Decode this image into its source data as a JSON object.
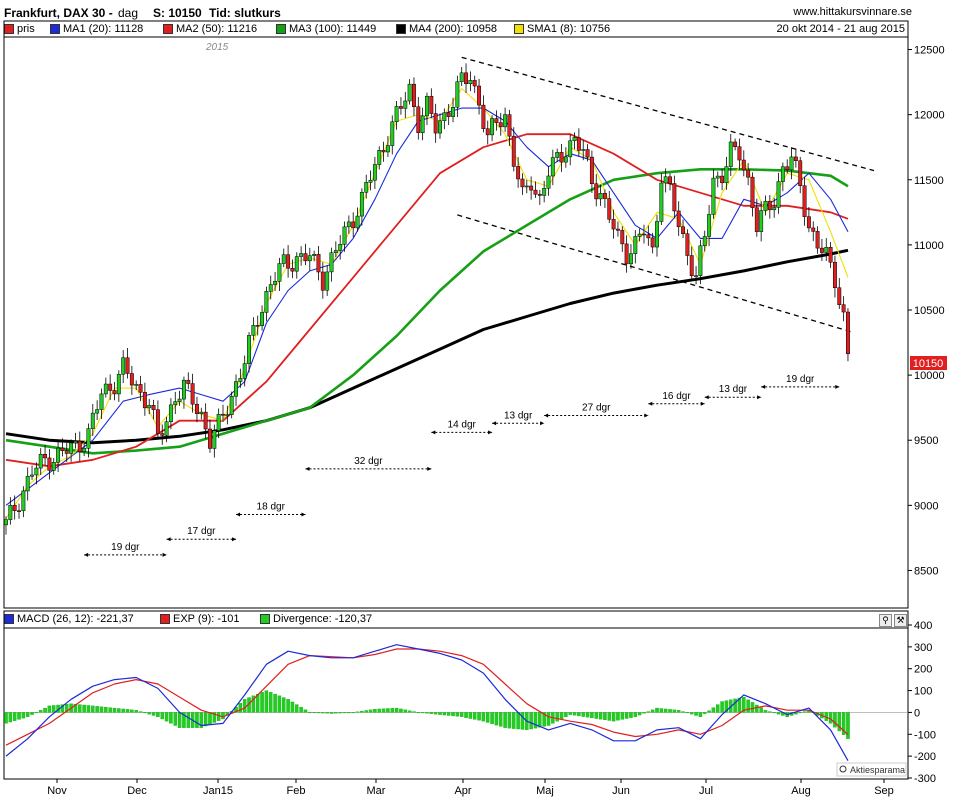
{
  "header": {
    "title": "Frankfurt, DAX 30 -",
    "interval": "dag",
    "s_label": "S: 10150",
    "tid_label": "Tid: slutkurs",
    "site": "www.hittakursvinnare.se",
    "period": "20 okt 2014 - 21 aug 2015"
  },
  "legend": [
    {
      "label": "pris",
      "color": "#e02020"
    },
    {
      "label": "MA1 (20): 11128",
      "color": "#1c2ad8"
    },
    {
      "label": "MA2 (50): 11216",
      "color": "#e02020"
    },
    {
      "label": "MA3 (100): 11449",
      "color": "#16a016"
    },
    {
      "label": "MA4 (200): 10958",
      "color": "#000000"
    },
    {
      "label": "SMA1 (8): 10756",
      "color": "#f0e000"
    }
  ],
  "macd_legend": [
    {
      "label": "MACD (26, 12): -221,37",
      "color": "#1c2ad8"
    },
    {
      "label": "EXP (9): -101",
      "color": "#e02020"
    },
    {
      "label": "Divergence: -120,37",
      "color": "#22cc22"
    }
  ],
  "year_label": "2015",
  "last_price_label": "10150",
  "credit": "Aktiesparama",
  "chart_data": {
    "type": "candlestick",
    "xlabels": [
      "Nov",
      "Dec",
      "Jan15",
      "Feb",
      "Mar",
      "Apr",
      "Maj",
      "Jun",
      "Jul",
      "Aug",
      "Sep"
    ],
    "price_ticks": [
      12500,
      12000,
      11500,
      11000,
      10500,
      10000,
      9500,
      9000,
      8500
    ],
    "price_ylim": [
      8350,
      12550
    ],
    "macd_ticks": [
      400,
      300,
      200,
      100,
      0,
      -100,
      -200,
      -300
    ],
    "macd_ylim": [
      -300,
      400
    ],
    "price_path": [
      [
        0,
        8850
      ],
      [
        3,
        9050
      ],
      [
        6,
        9250
      ],
      [
        9,
        9350
      ],
      [
        13,
        9400
      ],
      [
        16,
        9450
      ],
      [
        19,
        9550
      ],
      [
        22,
        9850
      ],
      [
        25,
        9950
      ],
      [
        27,
        10050
      ],
      [
        30,
        9900
      ],
      [
        33,
        9800
      ],
      [
        35,
        9500
      ],
      [
        37,
        9650
      ],
      [
        39,
        9850
      ],
      [
        41,
        9900
      ],
      [
        43,
        9800
      ],
      [
        45,
        9700
      ],
      [
        47,
        9500
      ],
      [
        49,
        9600
      ],
      [
        52,
        9850
      ],
      [
        55,
        10100
      ],
      [
        58,
        10450
      ],
      [
        61,
        10700
      ],
      [
        64,
        10850
      ],
      [
        67,
        10900
      ],
      [
        70,
        10900
      ],
      [
        73,
        10750
      ],
      [
        76,
        10950
      ],
      [
        79,
        11150
      ],
      [
        82,
        11350
      ],
      [
        85,
        11600
      ],
      [
        88,
        11850
      ],
      [
        91,
        12050
      ],
      [
        93,
        12200
      ],
      [
        95,
        11950
      ],
      [
        97,
        12050
      ],
      [
        99,
        11900
      ],
      [
        101,
        12000
      ],
      [
        103,
        12100
      ],
      [
        105,
        12250
      ],
      [
        107,
        12300
      ],
      [
        109,
        12100
      ],
      [
        111,
        11800
      ],
      [
        113,
        11950
      ],
      [
        115,
        12000
      ],
      [
        117,
        11650
      ],
      [
        119,
        11350
      ],
      [
        121,
        11500
      ],
      [
        123,
        11350
      ],
      [
        125,
        11550
      ],
      [
        127,
        11650
      ],
      [
        129,
        11750
      ],
      [
        131,
        11800
      ],
      [
        133,
        11700
      ],
      [
        135,
        11500
      ],
      [
        137,
        11400
      ],
      [
        139,
        11200
      ],
      [
        141,
        11050
      ],
      [
        143,
        10950
      ],
      [
        145,
        11000
      ],
      [
        147,
        11100
      ],
      [
        149,
        10950
      ],
      [
        151,
        11550
      ],
      [
        153,
        11400
      ],
      [
        155,
        11150
      ],
      [
        157,
        10950
      ],
      [
        159,
        10750
      ],
      [
        161,
        11050
      ],
      [
        163,
        11500
      ],
      [
        165,
        11550
      ],
      [
        167,
        11700
      ],
      [
        169,
        11700
      ],
      [
        171,
        11500
      ],
      [
        173,
        11150
      ],
      [
        175,
        11250
      ],
      [
        177,
        11350
      ],
      [
        179,
        11600
      ],
      [
        181,
        11650
      ],
      [
        183,
        11450
      ],
      [
        185,
        11150
      ],
      [
        187,
        11000
      ],
      [
        189,
        10900
      ],
      [
        191,
        10750
      ],
      [
        193,
        10450
      ],
      [
        194,
        10150
      ]
    ],
    "ma20_path": [
      [
        0,
        9000
      ],
      [
        10,
        9250
      ],
      [
        20,
        9500
      ],
      [
        27,
        9800
      ],
      [
        33,
        9850
      ],
      [
        40,
        9900
      ],
      [
        45,
        9850
      ],
      [
        50,
        9800
      ],
      [
        55,
        9950
      ],
      [
        60,
        10400
      ],
      [
        65,
        10650
      ],
      [
        70,
        10800
      ],
      [
        75,
        10850
      ],
      [
        80,
        11050
      ],
      [
        85,
        11350
      ],
      [
        90,
        11700
      ],
      [
        95,
        11950
      ],
      [
        100,
        12000
      ],
      [
        105,
        12050
      ],
      [
        110,
        12050
      ],
      [
        115,
        11950
      ],
      [
        120,
        11750
      ],
      [
        125,
        11600
      ],
      [
        130,
        11700
      ],
      [
        135,
        11650
      ],
      [
        140,
        11400
      ],
      [
        145,
        11150
      ],
      [
        150,
        11050
      ],
      [
        155,
        11250
      ],
      [
        160,
        11050
      ],
      [
        165,
        11050
      ],
      [
        170,
        11350
      ],
      [
        175,
        11300
      ],
      [
        180,
        11400
      ],
      [
        185,
        11550
      ],
      [
        190,
        11350
      ],
      [
        194,
        11100
      ]
    ],
    "ma50_path": [
      [
        0,
        9350
      ],
      [
        10,
        9300
      ],
      [
        20,
        9350
      ],
      [
        30,
        9450
      ],
      [
        40,
        9650
      ],
      [
        50,
        9650
      ],
      [
        60,
        9950
      ],
      [
        70,
        10350
      ],
      [
        80,
        10750
      ],
      [
        90,
        11150
      ],
      [
        100,
        11550
      ],
      [
        110,
        11750
      ],
      [
        120,
        11850
      ],
      [
        130,
        11850
      ],
      [
        140,
        11700
      ],
      [
        150,
        11500
      ],
      [
        160,
        11400
      ],
      [
        170,
        11300
      ],
      [
        180,
        11300
      ],
      [
        190,
        11250
      ],
      [
        194,
        11200
      ]
    ],
    "ma100_path": [
      [
        0,
        9500
      ],
      [
        10,
        9450
      ],
      [
        20,
        9400
      ],
      [
        30,
        9420
      ],
      [
        40,
        9450
      ],
      [
        50,
        9550
      ],
      [
        60,
        9650
      ],
      [
        70,
        9750
      ],
      [
        80,
        10000
      ],
      [
        90,
        10300
      ],
      [
        100,
        10650
      ],
      [
        110,
        10950
      ],
      [
        120,
        11150
      ],
      [
        130,
        11350
      ],
      [
        140,
        11500
      ],
      [
        150,
        11550
      ],
      [
        160,
        11580
      ],
      [
        170,
        11580
      ],
      [
        180,
        11570
      ],
      [
        190,
        11530
      ],
      [
        194,
        11450
      ]
    ],
    "ma200_path": [
      [
        0,
        9550
      ],
      [
        10,
        9500
      ],
      [
        20,
        9480
      ],
      [
        30,
        9500
      ],
      [
        40,
        9530
      ],
      [
        50,
        9580
      ],
      [
        60,
        9650
      ],
      [
        70,
        9750
      ],
      [
        80,
        9900
      ],
      [
        90,
        10050
      ],
      [
        100,
        10200
      ],
      [
        110,
        10350
      ],
      [
        120,
        10450
      ],
      [
        130,
        10550
      ],
      [
        140,
        10630
      ],
      [
        150,
        10690
      ],
      [
        160,
        10740
      ],
      [
        170,
        10800
      ],
      [
        180,
        10870
      ],
      [
        190,
        10930
      ],
      [
        194,
        10958
      ]
    ],
    "sma8_path": [
      [
        0,
        8900
      ],
      [
        5,
        9150
      ],
      [
        10,
        9300
      ],
      [
        15,
        9380
      ],
      [
        20,
        9550
      ],
      [
        25,
        9900
      ],
      [
        30,
        9900
      ],
      [
        35,
        9600
      ],
      [
        40,
        9800
      ],
      [
        45,
        9700
      ],
      [
        50,
        9650
      ],
      [
        55,
        10050
      ],
      [
        60,
        10550
      ],
      [
        65,
        10850
      ],
      [
        70,
        10900
      ],
      [
        75,
        10850
      ],
      [
        80,
        11150
      ],
      [
        85,
        11550
      ],
      [
        90,
        11950
      ],
      [
        95,
        12000
      ],
      [
        100,
        11950
      ],
      [
        105,
        12200
      ],
      [
        110,
        12050
      ],
      [
        115,
        11850
      ],
      [
        120,
        11500
      ],
      [
        125,
        11450
      ],
      [
        130,
        11750
      ],
      [
        135,
        11650
      ],
      [
        140,
        11250
      ],
      [
        145,
        11000
      ],
      [
        150,
        11250
      ],
      [
        155,
        11200
      ],
      [
        160,
        10850
      ],
      [
        165,
        11400
      ],
      [
        170,
        11650
      ],
      [
        175,
        11250
      ],
      [
        180,
        11550
      ],
      [
        185,
        11500
      ],
      [
        190,
        11100
      ],
      [
        194,
        10750
      ]
    ],
    "macd_path": [
      [
        0,
        -200
      ],
      [
        5,
        -120
      ],
      [
        10,
        -20
      ],
      [
        15,
        60
      ],
      [
        20,
        120
      ],
      [
        25,
        150
      ],
      [
        30,
        160
      ],
      [
        35,
        110
      ],
      [
        40,
        0
      ],
      [
        45,
        -60
      ],
      [
        50,
        -50
      ],
      [
        55,
        80
      ],
      [
        60,
        220
      ],
      [
        65,
        280
      ],
      [
        70,
        260
      ],
      [
        75,
        250
      ],
      [
        80,
        250
      ],
      [
        85,
        280
      ],
      [
        90,
        310
      ],
      [
        95,
        290
      ],
      [
        100,
        270
      ],
      [
        105,
        240
      ],
      [
        110,
        180
      ],
      [
        115,
        60
      ],
      [
        120,
        -40
      ],
      [
        125,
        -80
      ],
      [
        130,
        -50
      ],
      [
        135,
        -80
      ],
      [
        140,
        -130
      ],
      [
        145,
        -130
      ],
      [
        150,
        -80
      ],
      [
        155,
        -70
      ],
      [
        160,
        -120
      ],
      [
        165,
        -10
      ],
      [
        170,
        80
      ],
      [
        175,
        40
      ],
      [
        180,
        -10
      ],
      [
        185,
        20
      ],
      [
        190,
        -80
      ],
      [
        194,
        -221
      ]
    ],
    "exp_path": [
      [
        0,
        -150
      ],
      [
        5,
        -100
      ],
      [
        10,
        -50
      ],
      [
        15,
        20
      ],
      [
        20,
        90
      ],
      [
        25,
        130
      ],
      [
        30,
        150
      ],
      [
        35,
        130
      ],
      [
        40,
        70
      ],
      [
        45,
        10
      ],
      [
        50,
        -20
      ],
      [
        55,
        20
      ],
      [
        60,
        120
      ],
      [
        65,
        220
      ],
      [
        70,
        260
      ],
      [
        75,
        255
      ],
      [
        80,
        250
      ],
      [
        85,
        265
      ],
      [
        90,
        290
      ],
      [
        95,
        290
      ],
      [
        100,
        280
      ],
      [
        105,
        260
      ],
      [
        110,
        220
      ],
      [
        115,
        130
      ],
      [
        120,
        40
      ],
      [
        125,
        -20
      ],
      [
        130,
        -40
      ],
      [
        135,
        -55
      ],
      [
        140,
        -90
      ],
      [
        145,
        -110
      ],
      [
        150,
        -100
      ],
      [
        155,
        -80
      ],
      [
        160,
        -100
      ],
      [
        165,
        -60
      ],
      [
        170,
        10
      ],
      [
        175,
        30
      ],
      [
        180,
        10
      ],
      [
        185,
        10
      ],
      [
        190,
        -30
      ],
      [
        194,
        -101
      ]
    ],
    "channel_lines": [
      [
        [
          105,
          12440
        ],
        [
          200,
          11570
        ]
      ],
      [
        [
          104,
          11230
        ],
        [
          195,
          10330
        ]
      ]
    ],
    "cycles": [
      {
        "label": "19 dgr",
        "from": 18,
        "to": 37,
        "value": 8620
      },
      {
        "label": "17 dgr",
        "from": 37,
        "to": 53,
        "value": 8740
      },
      {
        "label": "18 dgr",
        "from": 53,
        "to": 69,
        "value": 8930
      },
      {
        "label": "32 dgr",
        "from": 69,
        "to": 98,
        "value": 9280
      },
      {
        "label": "14 dgr",
        "from": 98,
        "to": 112,
        "value": 9560
      },
      {
        "label": "13 dgr",
        "from": 112,
        "to": 124,
        "value": 9630
      },
      {
        "label": "27 dgr",
        "from": 124,
        "to": 148,
        "value": 9690
      },
      {
        "label": "16 dgr",
        "from": 148,
        "to": 161,
        "value": 9780
      },
      {
        "label": "13 dgr",
        "from": 161,
        "to": 174,
        "value": 9830
      },
      {
        "label": "19 dgr",
        "from": 174,
        "to": 192,
        "value": 9910
      }
    ],
    "colors": {
      "up": "#22cc22",
      "down": "#e02020",
      "ma20": "#1c2ad8",
      "ma50": "#e02020",
      "ma100": "#16a016",
      "ma200": "#000000",
      "sma8": "#f0e000"
    }
  }
}
